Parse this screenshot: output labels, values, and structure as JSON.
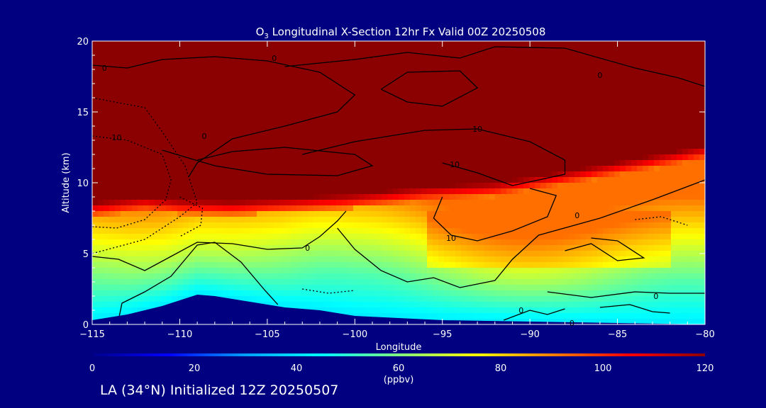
{
  "colors": {
    "background": "#000080",
    "foreground": "#ffffff",
    "terrain": "#000080",
    "contour": "#000000",
    "colormap": [
      "#00008b",
      "#0000ff",
      "#00a0ff",
      "#00ffff",
      "#80ff80",
      "#ffff00",
      "#ff8000",
      "#ff0000",
      "#8b0000"
    ]
  },
  "chart_data": {
    "type": "heatmap",
    "title_main": "O",
    "title_sub": "3",
    "title_rest": " Longitudinal X-Section 12hr  Fx Valid 00Z 20250508",
    "xlabel": "Longitude",
    "ylabel": "Altitude (km)",
    "xlim": [
      -115,
      -80
    ],
    "ylim": [
      0,
      20
    ],
    "xticks": [
      "−115",
      "−110",
      "−105",
      "−100",
      "−95",
      "−90",
      "−85",
      "−80"
    ],
    "xtick_values": [
      -115,
      -110,
      -105,
      -100,
      -95,
      -90,
      -85,
      -80
    ],
    "yticks": [
      "0",
      "5",
      "10",
      "15",
      "20"
    ],
    "ytick_values": [
      0,
      5,
      10,
      15,
      20
    ],
    "colorbar": {
      "label": "(ppbv)",
      "range": [
        0,
        120
      ],
      "ticks": [
        "0",
        "20",
        "40",
        "60",
        "80",
        "100",
        "120"
      ],
      "tick_values": [
        0,
        20,
        40,
        60,
        80,
        100,
        120
      ]
    },
    "tropopause_height_km": {
      "x": [
        -115,
        -112,
        -110,
        -107,
        -104,
        -100,
        -96,
        -92,
        -88,
        -84,
        -80
      ],
      "y": [
        8.2,
        8.6,
        8.4,
        8.3,
        8.5,
        8.8,
        9.3,
        9.6,
        10.4,
        11.3,
        12.2
      ]
    },
    "terrain_height_km": {
      "x": [
        -115,
        -113,
        -111,
        -110,
        -109,
        -108,
        -107,
        -106,
        -105,
        -104,
        -103,
        -102,
        -100,
        -95,
        -90,
        -85,
        -80
      ],
      "y": [
        0.3,
        0.7,
        1.3,
        1.7,
        2.1,
        2.0,
        1.8,
        1.6,
        1.4,
        1.2,
        1.1,
        1.0,
        0.6,
        0.3,
        0.2,
        0.1,
        0.0
      ]
    },
    "contour_labels": [
      {
        "text": "0",
        "x": -114.3,
        "y": 18.1
      },
      {
        "text": "0",
        "x": -104.6,
        "y": 18.8
      },
      {
        "text": "0",
        "x": -86.0,
        "y": 17.6
      },
      {
        "text": "10",
        "x": -113.6,
        "y": 13.2
      },
      {
        "text": "0",
        "x": -108.6,
        "y": 13.3
      },
      {
        "text": "10",
        "x": -93.0,
        "y": 13.8
      },
      {
        "text": "10",
        "x": -94.3,
        "y": 11.3
      },
      {
        "text": "0",
        "x": -102.7,
        "y": 5.4
      },
      {
        "text": "10",
        "x": -94.5,
        "y": 6.1
      },
      {
        "text": "0",
        "x": -87.3,
        "y": 7.7
      },
      {
        "text": "0",
        "x": -82.8,
        "y": 2.0
      },
      {
        "text": "0",
        "x": -90.5,
        "y": 1.0
      },
      {
        "text": "0",
        "x": -87.6,
        "y": 0.1
      }
    ]
  },
  "footer": {
    "text": "LA (34°N) Initialized 12Z 20250507"
  }
}
